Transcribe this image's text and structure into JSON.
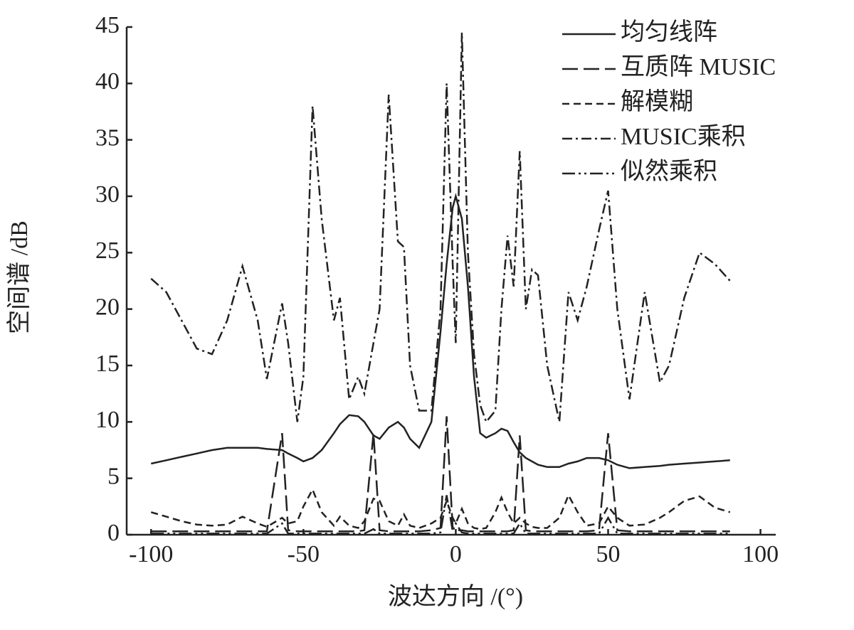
{
  "chart_data": {
    "type": "line",
    "x_label": "波达方向 /(°)",
    "y_label": "空间谱 /dB",
    "x": [
      -100,
      -95,
      -90,
      -85,
      -80,
      -75,
      -70,
      -65,
      -62,
      -57,
      -55,
      -52,
      -50,
      -47,
      -44,
      -40,
      -38,
      -35,
      -32,
      -30,
      -27,
      -25,
      -22,
      -19,
      -17,
      -15,
      -12,
      -8,
      -5,
      -3,
      -1,
      0,
      2,
      4,
      6,
      8,
      10,
      13,
      15,
      17,
      19,
      21,
      23,
      25,
      27,
      30,
      34,
      37,
      40,
      43,
      47,
      50,
      53,
      57,
      62,
      67,
      70,
      75,
      80,
      85,
      90
    ],
    "series": [
      {
        "name": "均匀线阵",
        "color": "#222222",
        "dash": "none",
        "values": [
          6.3,
          6.6,
          6.9,
          7.2,
          7.5,
          7.7,
          7.7,
          7.7,
          7.6,
          7.5,
          7.2,
          6.8,
          6.5,
          6.8,
          7.5,
          9,
          9.8,
          10.6,
          10.5,
          10,
          8.8,
          8.5,
          9.5,
          10,
          9.5,
          8.5,
          7.7,
          10,
          18,
          24,
          29,
          30,
          28,
          22,
          14,
          9,
          8.6,
          9,
          9.4,
          9.2,
          8.2,
          7.3,
          6.8,
          6.5,
          6.2,
          6,
          6,
          6.3,
          6.5,
          6.8,
          6.8,
          6.6,
          6.2,
          5.9,
          6,
          6.1,
          6.2,
          6.3,
          6.4,
          6.5,
          6.6
        ]
      },
      {
        "name": "互质阵 MUSIC",
        "color": "#222222",
        "dash": "22 8",
        "values": [
          0.3,
          0.3,
          0.3,
          0.3,
          0.3,
          0.3,
          0.3,
          0.3,
          0.3,
          9,
          0.4,
          0.3,
          0.3,
          0.3,
          0.3,
          0.3,
          0.3,
          0.3,
          0.3,
          0.4,
          9,
          0.4,
          0.3,
          0.3,
          0.3,
          0.3,
          0.3,
          0.4,
          0.6,
          10.5,
          0.6,
          0.4,
          0.4,
          0.3,
          0.3,
          0.3,
          0.3,
          0.3,
          0.3,
          0.3,
          0.4,
          8.8,
          0.4,
          0.3,
          0.3,
          0.3,
          0.3,
          0.3,
          0.3,
          0.3,
          0.4,
          9,
          0.4,
          0.3,
          0.3,
          0.3,
          0.3,
          0.3,
          0.3,
          0.3,
          0.3
        ]
      },
      {
        "name": "解模糊",
        "color": "#222222",
        "dash": "10 6",
        "values": [
          2,
          1.6,
          1.2,
          0.9,
          0.8,
          0.9,
          1.6,
          1,
          0.7,
          1.5,
          1,
          1.2,
          2.5,
          4,
          2,
          0.8,
          1.6,
          0.8,
          0.6,
          1.2,
          3.2,
          3,
          1.2,
          0.8,
          1.8,
          0.8,
          0.6,
          1,
          1.5,
          3,
          1.5,
          1,
          2.3,
          1,
          0.6,
          0.5,
          0.6,
          2,
          3.3,
          2,
          1,
          1.5,
          1,
          0.7,
          0.6,
          0.6,
          1.5,
          3.5,
          2,
          0.8,
          1,
          2.5,
          1.5,
          0.8,
          0.9,
          1.5,
          2,
          3,
          3.4,
          2.4,
          2
        ]
      },
      {
        "name": "MUSIC乘积",
        "color": "#222222",
        "dash": "14 5 3 5",
        "values": [
          22.7,
          21.5,
          19,
          16.5,
          16,
          19,
          23.8,
          19,
          13.8,
          20.5,
          17,
          10,
          14,
          38,
          28,
          19,
          21,
          12,
          14,
          12.5,
          17,
          20,
          39,
          26,
          25.5,
          15,
          11,
          11,
          20,
          40,
          24,
          17,
          44.5,
          25,
          16,
          11.5,
          10,
          11,
          20,
          26.5,
          22,
          34,
          20,
          23.5,
          23,
          15,
          10,
          21.5,
          19,
          22,
          27,
          30.5,
          20,
          12,
          21.5,
          13.5,
          15,
          21,
          25,
          24,
          22.5
        ]
      },
      {
        "name": "似然乘积",
        "color": "#222222",
        "dash": "18 5 3 5 3 5",
        "values": [
          0.1,
          0.1,
          0.1,
          0.1,
          0.1,
          0.1,
          0.1,
          0.1,
          0.1,
          1,
          0.1,
          0.1,
          0.1,
          0.1,
          0.1,
          0.1,
          0.1,
          0.1,
          0.1,
          0.1,
          0.5,
          0.1,
          0.1,
          0.1,
          0.1,
          0.1,
          0.1,
          0.1,
          0.2,
          3.5,
          0.3,
          1,
          0.2,
          0.1,
          0.1,
          0.1,
          0.1,
          0.1,
          0.1,
          0.1,
          0.1,
          1,
          0.1,
          0.1,
          0.1,
          0.1,
          0.1,
          0.1,
          0.1,
          0.1,
          0.1,
          1.5,
          0.1,
          0.1,
          0.1,
          0.1,
          0.1,
          0.1,
          0.1,
          0.1,
          0.1
        ]
      }
    ],
    "xlim": [
      -108,
      105
    ],
    "ylim": [
      0,
      45
    ],
    "xticks": [
      -100,
      -50,
      0,
      50,
      100
    ],
    "yticks": [
      0,
      5,
      10,
      15,
      20,
      25,
      30,
      35,
      40,
      45
    ],
    "legend": "upper right",
    "grid": false
  }
}
